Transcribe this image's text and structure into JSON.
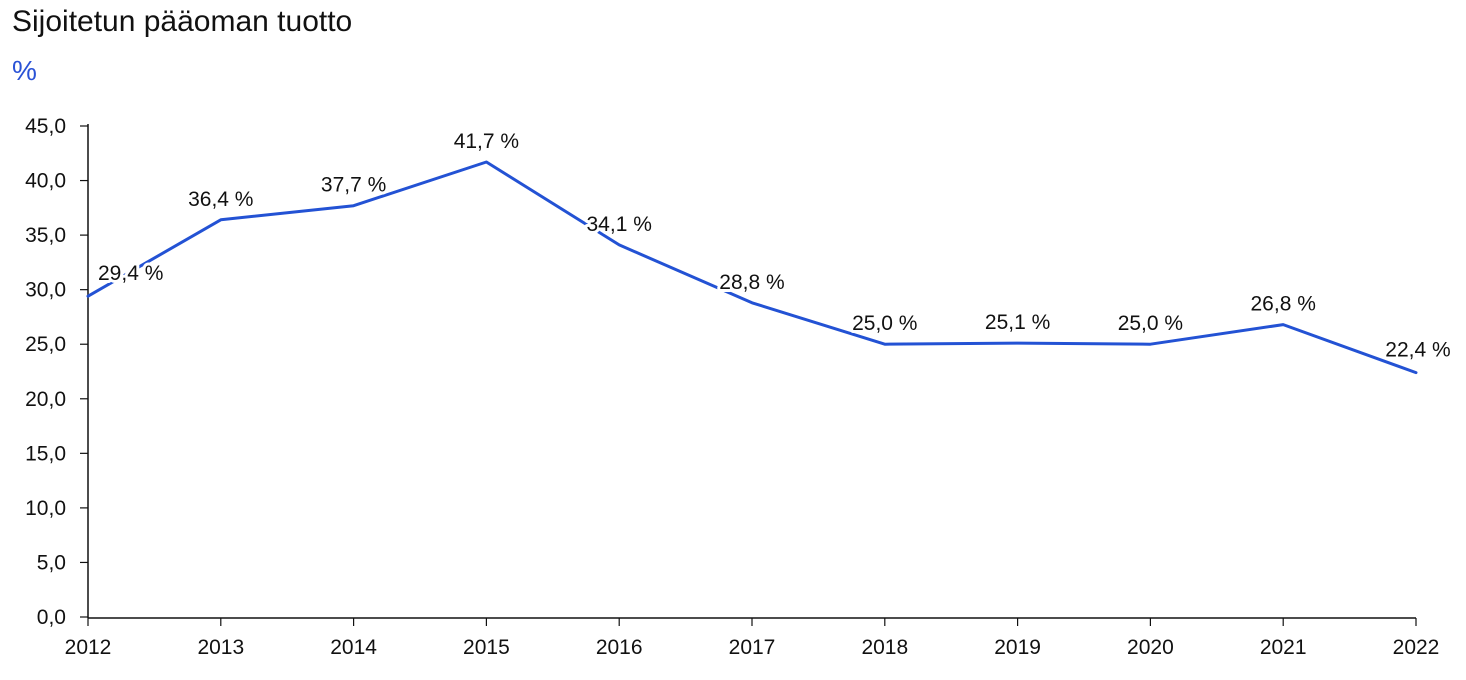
{
  "chart_data": {
    "type": "line",
    "title": "Sijoitetun pääoman tuotto",
    "ylabel": "%",
    "xlabel": "",
    "x": [
      "2012",
      "2013",
      "2014",
      "2015",
      "2016",
      "2017",
      "2018",
      "2019",
      "2020",
      "2021",
      "2022"
    ],
    "series": [
      {
        "values": [
          29.4,
          36.4,
          37.7,
          41.7,
          34.1,
          28.8,
          25.0,
          25.1,
          25.0,
          26.8,
          22.4
        ],
        "data_labels": [
          "29,4 %",
          "36,4 %",
          "37,7 %",
          "41,7 %",
          "34,1 %",
          "28,8 %",
          "25,0 %",
          "25,1 %",
          "25,0 %",
          "26,8 %",
          "22,4 %"
        ],
        "color": "#2352d4"
      }
    ],
    "ylim": [
      0,
      45
    ],
    "yticks": [
      0,
      5,
      10,
      15,
      20,
      25,
      30,
      35,
      40,
      45
    ],
    "ytick_labels": [
      "0,0",
      "5,0",
      "10,0",
      "15,0",
      "20,0",
      "25,0",
      "30,0",
      "35,0",
      "40,0",
      "45,0"
    ],
    "grid": false,
    "legend": "none"
  },
  "colors": {
    "unit": "#2a52d6",
    "axis": "#111111"
  }
}
